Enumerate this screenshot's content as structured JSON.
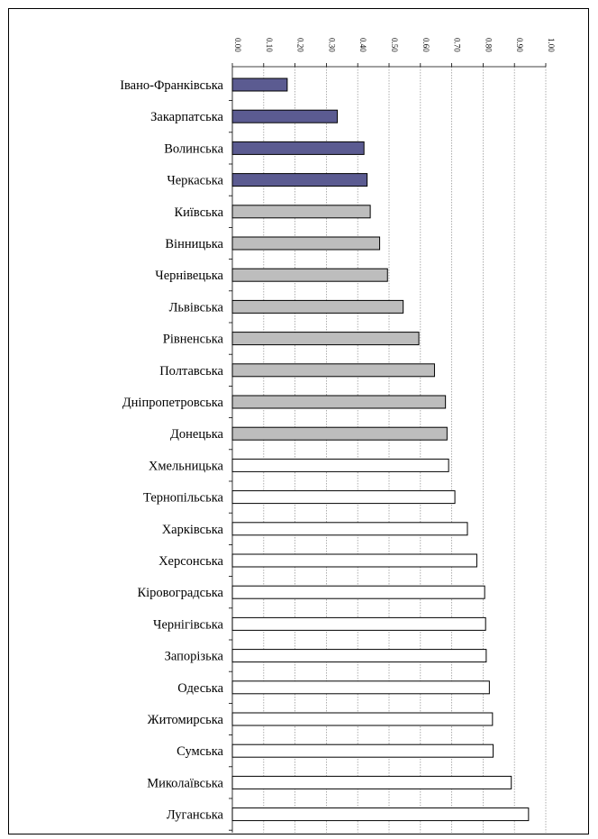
{
  "chart_data": {
    "type": "bar",
    "orientation": "horizontal",
    "categories": [
      "Івано-Франківська",
      "Закарпатська",
      "Волинська",
      "Черкаська",
      "Київська",
      "Вінницька",
      "Чернівецька",
      "Львівська",
      "Рівненська",
      "Полтавська",
      "Дніпропетровська",
      "Донецька",
      "Хмельницька",
      "Тернопільська",
      "Харківська",
      "Херсонська",
      "Кіровоградська",
      "Чернігівська",
      "Запорізька",
      "Одеська",
      "Житомирська",
      "Сумська",
      "Миколаївська",
      "Луганська"
    ],
    "values": [
      0.175,
      0.335,
      0.42,
      0.43,
      0.44,
      0.47,
      0.495,
      0.545,
      0.595,
      0.645,
      0.68,
      0.685,
      0.69,
      0.71,
      0.75,
      0.78,
      0.805,
      0.808,
      0.81,
      0.82,
      0.83,
      0.832,
      0.89,
      0.945
    ],
    "groups": [
      "dark",
      "dark",
      "dark",
      "dark",
      "gray",
      "gray",
      "gray",
      "gray",
      "gray",
      "gray",
      "gray",
      "gray",
      "white",
      "white",
      "white",
      "white",
      "white",
      "white",
      "white",
      "white",
      "white",
      "white",
      "white",
      "white"
    ],
    "group_colors": {
      "dark": "#5b5b91",
      "gray": "#bdbdbd",
      "white": "#ffffff"
    },
    "xlim": [
      0,
      1.0
    ],
    "ticks": [
      0.0,
      0.1,
      0.2,
      0.3,
      0.4,
      0.5,
      0.6,
      0.7,
      0.8,
      0.9,
      1.0
    ],
    "tick_labels": [
      "0.00",
      "0.10",
      "0.20",
      "0.30",
      "0.40",
      "0.50",
      "0.60",
      "0.70",
      "0.80",
      "0.90",
      "1.00"
    ],
    "grid": true,
    "title": "",
    "xlabel": "",
    "ylabel": ""
  }
}
